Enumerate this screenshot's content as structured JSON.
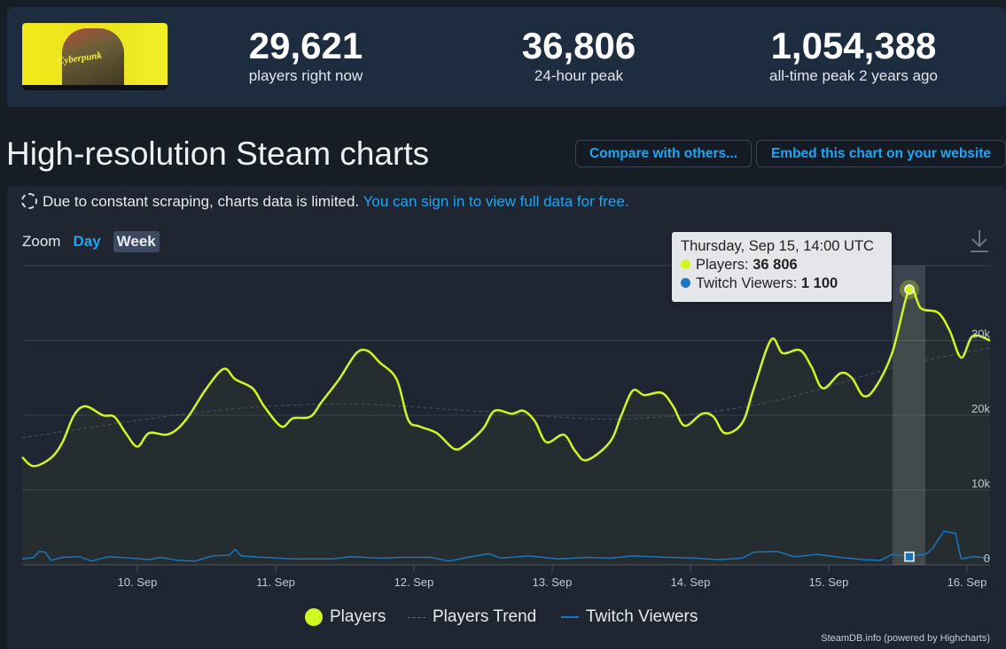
{
  "header": {
    "game_logo_text": "Cyberpunk",
    "stats": [
      {
        "value": "29,621",
        "label": "players right now"
      },
      {
        "value": "36,806",
        "label": "24-hour peak"
      },
      {
        "value": "1,054,388",
        "label": "all-time peak 2 years ago"
      }
    ]
  },
  "page_title": "High-resolution Steam charts",
  "buttons": {
    "compare": "Compare with others...",
    "embed": "Embed this chart on your website"
  },
  "notice": {
    "text": "Due to constant scraping, charts data is limited.",
    "link": "You can sign in to view full data for free."
  },
  "zoom": {
    "label": "Zoom",
    "day": "Day",
    "week": "Week",
    "active": "Week"
  },
  "tooltip": {
    "date": "Thursday, Sep 15, 14:00 UTC",
    "players_label": "Players:",
    "players_value": "36 806",
    "twitch_label": "Twitch Viewers:",
    "twitch_value": "1 100"
  },
  "credits": "SteamDB.info (powered by Highcharts)",
  "colors": {
    "players": "#d2f71e",
    "twitch": "#1b76bb",
    "trend": "#5a6270",
    "link": "#1fa6f2"
  },
  "icons": {
    "download": "download-icon",
    "loading": "dashed-circle-icon"
  },
  "chart_data": {
    "type": "line",
    "x_ticks": [
      "10. Sep",
      "11. Sep",
      "12. Sep",
      "13. Sep",
      "14. Sep",
      "15. Sep",
      "16. Sep"
    ],
    "y_ticks": [
      "0",
      "10k",
      "20k",
      "30k"
    ],
    "ylim": [
      0,
      40000
    ],
    "grid": true,
    "legend": "bottom",
    "highlight": {
      "time": "Sep 15 14:00",
      "players": 36806,
      "twitch": 1100
    },
    "series": [
      {
        "name": "Players",
        "points": [
          [
            "Sep 9 04:00",
            14400
          ],
          [
            "Sep 9 06:00",
            13200
          ],
          [
            "Sep 9 09:00",
            14300
          ],
          [
            "Sep 9 11:00",
            16400
          ],
          [
            "Sep 9 13:00",
            20000
          ],
          [
            "Sep 9 15:00",
            21200
          ],
          [
            "Sep 9 18:00",
            20000
          ],
          [
            "Sep 9 20:00",
            19800
          ],
          [
            "Sep 9 22:00",
            17600
          ],
          [
            "Sep 10 00:00",
            15800
          ],
          [
            "Sep 10 02:00",
            17600
          ],
          [
            "Sep 10 05:00",
            17400
          ],
          [
            "Sep 10 07:00",
            18200
          ],
          [
            "Sep 10 09:00",
            20000
          ],
          [
            "Sep 10 12:00",
            23600
          ],
          [
            "Sep 10 15:00",
            26200
          ],
          [
            "Sep 10 17:00",
            24800
          ],
          [
            "Sep 10 20:00",
            23600
          ],
          [
            "Sep 10 22:00",
            21200
          ],
          [
            "Sep 11 01:00",
            18500
          ],
          [
            "Sep 11 03:00",
            19600
          ],
          [
            "Sep 11 06:00",
            19800
          ],
          [
            "Sep 11 08:00",
            21800
          ],
          [
            "Sep 11 11:00",
            24800
          ],
          [
            "Sep 11 14:00",
            28300
          ],
          [
            "Sep 11 16:00",
            28600
          ],
          [
            "Sep 11 18:00",
            27100
          ],
          [
            "Sep 11 21:00",
            24800
          ],
          [
            "Sep 11 23:00",
            19400
          ],
          [
            "Sep 12 01:00",
            18500
          ],
          [
            "Sep 12 04:00",
            17600
          ],
          [
            "Sep 12 07:00",
            15500
          ],
          [
            "Sep 12 09:00",
            16100
          ],
          [
            "Sep 12 12:00",
            18200
          ],
          [
            "Sep 12 14:00",
            20600
          ],
          [
            "Sep 12 17:00",
            20200
          ],
          [
            "Sep 12 19:00",
            20600
          ],
          [
            "Sep 12 21:00",
            19200
          ],
          [
            "Sep 12 23:00",
            16400
          ],
          [
            "Sep 13 02:00",
            17400
          ],
          [
            "Sep 13 04:00",
            15200
          ],
          [
            "Sep 13 06:00",
            14000
          ],
          [
            "Sep 13 10:00",
            16400
          ],
          [
            "Sep 13 12:00",
            20000
          ],
          [
            "Sep 13 14:00",
            23300
          ],
          [
            "Sep 13 16:00",
            22700
          ],
          [
            "Sep 13 19:00",
            23000
          ],
          [
            "Sep 13 21:00",
            21200
          ],
          [
            "Sep 13 23:00",
            18600
          ],
          [
            "Sep 14 02:00",
            20200
          ],
          [
            "Sep 14 04:00",
            19800
          ],
          [
            "Sep 14 06:00",
            17600
          ],
          [
            "Sep 14 09:00",
            19000
          ],
          [
            "Sep 14 11:00",
            23600
          ],
          [
            "Sep 14 14:00",
            30100
          ],
          [
            "Sep 14 16:00",
            28300
          ],
          [
            "Sep 14 19:00",
            28700
          ],
          [
            "Sep 14 21:00",
            26500
          ],
          [
            "Sep 14 23:00",
            23600
          ],
          [
            "Sep 15 02:00",
            25600
          ],
          [
            "Sep 15 04:00",
            25000
          ],
          [
            "Sep 15 06:00",
            22600
          ],
          [
            "Sep 15 08:00",
            23600
          ],
          [
            "Sep 15 11:00",
            28300
          ],
          [
            "Sep 15 14:00",
            36806
          ],
          [
            "Sep 15 16:00",
            34300
          ],
          [
            "Sep 15 19:00",
            33700
          ],
          [
            "Sep 15 21:00",
            31300
          ],
          [
            "Sep 15 23:00",
            27700
          ],
          [
            "Sep 16 01:00",
            30600
          ],
          [
            "Sep 16 04:00",
            30000
          ]
        ]
      },
      {
        "name": "Players Trend",
        "points": [
          [
            "Sep 9 04:00",
            17000
          ],
          [
            "Sep 10 12:00",
            20500
          ],
          [
            "Sep 11 12:00",
            21500
          ],
          [
            "Sep 12 12:00",
            20500
          ],
          [
            "Sep 13 12:00",
            19500
          ],
          [
            "Sep 14 12:00",
            21500
          ],
          [
            "Sep 15 12:00",
            26500
          ],
          [
            "Sep 16 04:00",
            29000
          ]
        ]
      },
      {
        "name": "Twitch Viewers",
        "points": [
          [
            "Sep 9 04:00",
            800
          ],
          [
            "Sep 9 06:00",
            1000
          ],
          [
            "Sep 9 07:00",
            1800
          ],
          [
            "Sep 9 08:00",
            1700
          ],
          [
            "Sep 9 09:00",
            600
          ],
          [
            "Sep 9 11:00",
            1000
          ],
          [
            "Sep 9 14:00",
            1100
          ],
          [
            "Sep 9 16:00",
            500
          ],
          [
            "Sep 9 19:00",
            1100
          ],
          [
            "Sep 9 23:00",
            900
          ],
          [
            "Sep 10 02:00",
            700
          ],
          [
            "Sep 10 04:00",
            1000
          ],
          [
            "Sep 10 07:00",
            600
          ],
          [
            "Sep 10 10:00",
            500
          ],
          [
            "Sep 10 13:00",
            1200
          ],
          [
            "Sep 10 16:00",
            1300
          ],
          [
            "Sep 10 17:00",
            2100
          ],
          [
            "Sep 10 18:00",
            1200
          ],
          [
            "Sep 10 22:00",
            1000
          ],
          [
            "Sep 11 03:00",
            800
          ],
          [
            "Sep 11 10:00",
            800
          ],
          [
            "Sep 11 13:00",
            1100
          ],
          [
            "Sep 11 18:00",
            900
          ],
          [
            "Sep 11 22:00",
            1000
          ],
          [
            "Sep 12 03:00",
            1000
          ],
          [
            "Sep 12 06:00",
            500
          ],
          [
            "Sep 12 10:00",
            1100
          ],
          [
            "Sep 12 13:00",
            1500
          ],
          [
            "Sep 12 15:00",
            900
          ],
          [
            "Sep 12 20:00",
            1200
          ],
          [
            "Sep 13 01:00",
            800
          ],
          [
            "Sep 13 06:00",
            1000
          ],
          [
            "Sep 13 10:00",
            900
          ],
          [
            "Sep 13 14:00",
            1200
          ],
          [
            "Sep 13 20:00",
            1000
          ],
          [
            "Sep 14 01:00",
            900
          ],
          [
            "Sep 14 05:00",
            700
          ],
          [
            "Sep 14 09:00",
            900
          ],
          [
            "Sep 14 11:00",
            1700
          ],
          [
            "Sep 14 15:00",
            1800
          ],
          [
            "Sep 14 18:00",
            1100
          ],
          [
            "Sep 14 22:00",
            1400
          ],
          [
            "Sep 15 02:00",
            1000
          ],
          [
            "Sep 15 06:00",
            700
          ],
          [
            "Sep 15 09:00",
            600
          ],
          [
            "Sep 15 11:00",
            1400
          ],
          [
            "Sep 15 14:00",
            1100
          ],
          [
            "Sep 15 17:00",
            1500
          ],
          [
            "Sep 15 18:00",
            2200
          ],
          [
            "Sep 15 20:00",
            4500
          ],
          [
            "Sep 15 22:00",
            4200
          ],
          [
            "Sep 15 23:00",
            800
          ],
          [
            "Sep 16 01:00",
            1100
          ],
          [
            "Sep 16 04:00",
            900
          ]
        ]
      }
    ]
  }
}
